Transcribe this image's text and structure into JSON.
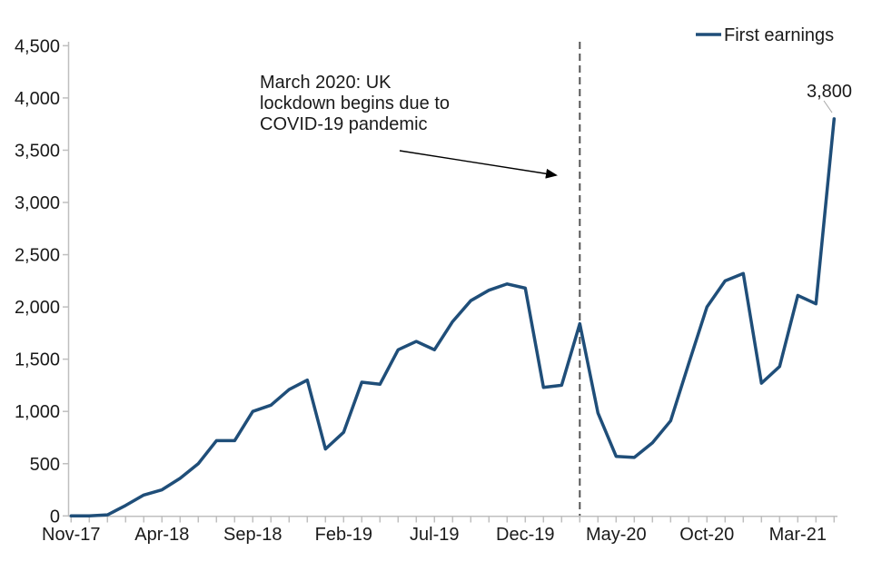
{
  "chart_data": {
    "type": "line",
    "title": "",
    "x": [
      "Nov-17",
      "Dec-17",
      "Jan-18",
      "Feb-18",
      "Mar-18",
      "Apr-18",
      "May-18",
      "Jun-18",
      "Jul-18",
      "Aug-18",
      "Sep-18",
      "Oct-18",
      "Nov-18",
      "Dec-18",
      "Jan-19",
      "Feb-19",
      "Mar-19",
      "Apr-19",
      "May-19",
      "Jun-19",
      "Jul-19",
      "Aug-19",
      "Sep-19",
      "Oct-19",
      "Nov-19",
      "Dec-19",
      "Jan-20",
      "Feb-20",
      "Mar-20",
      "Apr-20",
      "May-20",
      "Jun-20",
      "Jul-20",
      "Aug-20",
      "Sep-20",
      "Oct-20",
      "Nov-20",
      "Dec-20",
      "Jan-21",
      "Feb-21",
      "Mar-21",
      "Apr-21",
      "May-21"
    ],
    "series": [
      {
        "name": "First earnings",
        "values": [
          0,
          0,
          10,
          100,
          200,
          250,
          360,
          500,
          720,
          720,
          1000,
          1060,
          1210,
          1300,
          640,
          800,
          1280,
          1260,
          1590,
          1670,
          1590,
          1860,
          2060,
          2160,
          2220,
          2180,
          1230,
          1250,
          1840,
          985,
          570,
          560,
          700,
          910,
          1460,
          2000,
          2250,
          2320,
          1270,
          1430,
          2110,
          2030,
          3800
        ]
      }
    ],
    "x_tick_labels": [
      "Nov-17",
      "Apr-18",
      "Sep-18",
      "Feb-19",
      "Jul-19",
      "Dec-19",
      "May-20",
      "Oct-20",
      "Mar-21"
    ],
    "x_tick_step": 5,
    "y_axis": {
      "min": 0,
      "max": 4500,
      "step": 500
    },
    "legend_position": "top-right",
    "grid": false,
    "annotation": {
      "lines": [
        "March 2020: UK",
        "lockdown begins due to",
        "COVID-19 pandemic"
      ]
    },
    "event_line": {
      "month": "Mar-20",
      "month_index": 28,
      "style": "dashed"
    },
    "end_label": {
      "text": "3,800",
      "value": 3800,
      "month": "May-21"
    }
  },
  "colors": {
    "series": "#1F4E79",
    "axis": "#BFBFBF",
    "dashed_line": "#555555",
    "text": "#1a1a1a",
    "leader": "#A6A6A6",
    "arrow": "#000000"
  }
}
